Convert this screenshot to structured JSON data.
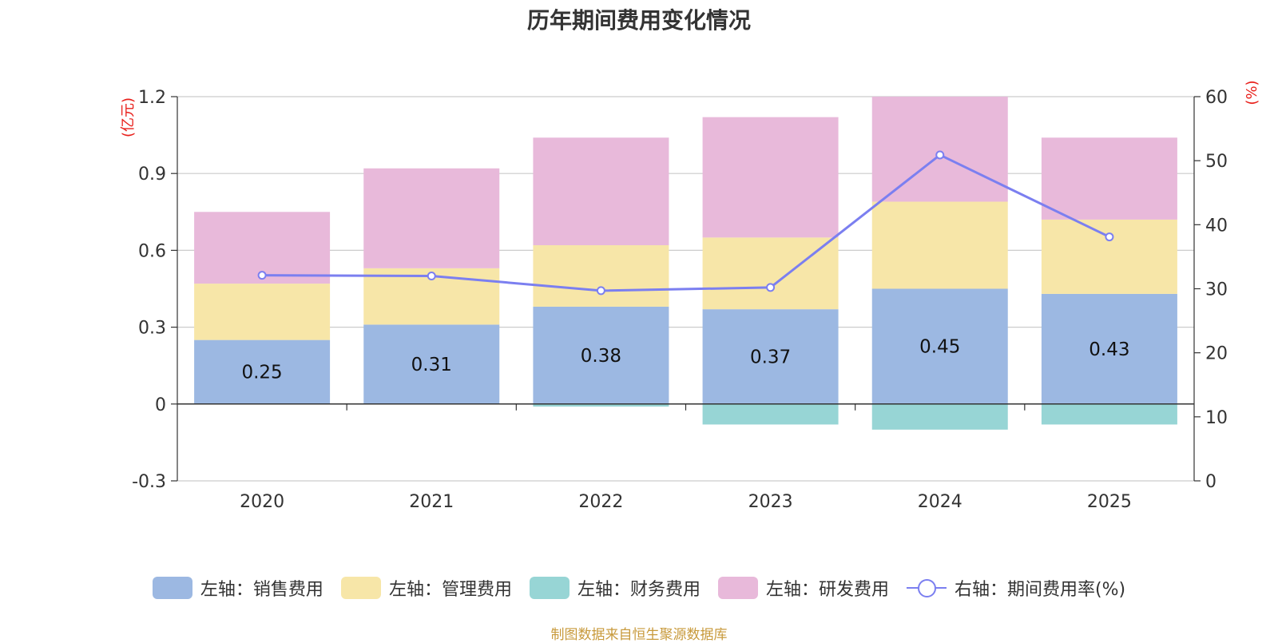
{
  "chart_data": {
    "type": "bar",
    "title": "历年期间费用变化情况",
    "categories": [
      "2020",
      "2021",
      "2022",
      "2023",
      "2024",
      "2025"
    ],
    "left_axis": {
      "unit_label": "(亿元)",
      "ylim": [
        -0.3,
        1.2
      ],
      "ticks": [
        -0.3,
        0,
        0.3,
        0.6,
        0.9,
        1.2
      ],
      "tick_labels": [
        "-0.3",
        "0",
        "0.3",
        "0.6",
        "0.9",
        "1.2"
      ]
    },
    "right_axis": {
      "unit_label": "(%)",
      "ylim": [
        0,
        60
      ],
      "ticks": [
        0,
        10,
        20,
        30,
        40,
        50,
        60
      ],
      "tick_labels": [
        "0",
        "10",
        "20",
        "30",
        "40",
        "50",
        "60"
      ]
    },
    "series": [
      {
        "name": "左轴：销售费用",
        "type": "bar",
        "axis": "left",
        "color": "#9cb8e2",
        "values": [
          0.25,
          0.31,
          0.38,
          0.37,
          0.45,
          0.43
        ],
        "data_labels": [
          "0.25",
          "0.31",
          "0.38",
          "0.37",
          "0.45",
          "0.43"
        ]
      },
      {
        "name": "左轴：管理费用",
        "type": "bar",
        "axis": "left",
        "color": "#f7e6a8",
        "values": [
          0.22,
          0.22,
          0.24,
          0.28,
          0.34,
          0.29
        ]
      },
      {
        "name": "左轴：财务费用",
        "type": "bar",
        "axis": "left",
        "color": "#97d5d5",
        "values": [
          0.0,
          0.0,
          -0.01,
          -0.08,
          -0.1,
          -0.08
        ]
      },
      {
        "name": "左轴：研发费用",
        "type": "bar",
        "axis": "left",
        "color": "#e8b9da",
        "values": [
          0.28,
          0.39,
          0.42,
          0.47,
          0.41,
          0.32
        ]
      },
      {
        "name": "右轴：期间费用率(%)",
        "type": "line",
        "axis": "right",
        "color": "#7b7ff0",
        "values": [
          32.1,
          32.0,
          29.7,
          30.2,
          50.9,
          38.1
        ]
      }
    ],
    "legend_position": "bottom",
    "grid": true
  },
  "source_note": "制图数据来自恒生聚源数据库"
}
